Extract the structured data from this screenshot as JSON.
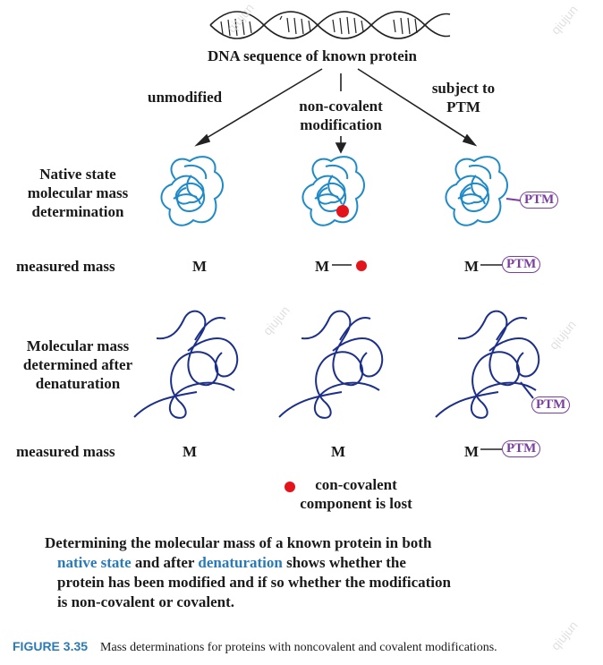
{
  "diagram": {
    "dna_label": "DNA sequence of known protein",
    "branch_unmodified": "unmodified",
    "branch_noncovalent": "non-covalent\nmodification",
    "branch_ptm": "subject to\nPTM",
    "row_native": "Native state\nmolecular mass\ndetermination",
    "row_measured_1": "measured mass",
    "row_denatured": "Molecular mass\ndetermined after\ndenaturation",
    "row_measured_2": "measured mass",
    "mass_symbol": "M",
    "ptm_label": "PTM",
    "lost_note": "con-covalent\ncomponent is lost",
    "colors": {
      "protein_native": "#1f8ac8",
      "protein_denatured": "#1c2f8a",
      "ptm": "#7a3fa0",
      "ligand": "#e3141b",
      "accent": "#2a7ab8"
    }
  },
  "summary": {
    "part1": "Determining the molecular mass of a known protein in both",
    "blue1": "native state",
    "mid1": " and after ",
    "blue2": "denaturation",
    "part2": " shows whether the",
    "line3": "protein has been modified and if so whether the modification",
    "line4": "is non-covalent or covalent."
  },
  "figure": {
    "label": "FIGURE 3.35",
    "caption": "Mass determinations for proteins with noncovalent and covalent modifications."
  },
  "watermarks": [
    "qiujun",
    "qiujun",
    "qiujun",
    "qiujun",
    "qiujun"
  ]
}
